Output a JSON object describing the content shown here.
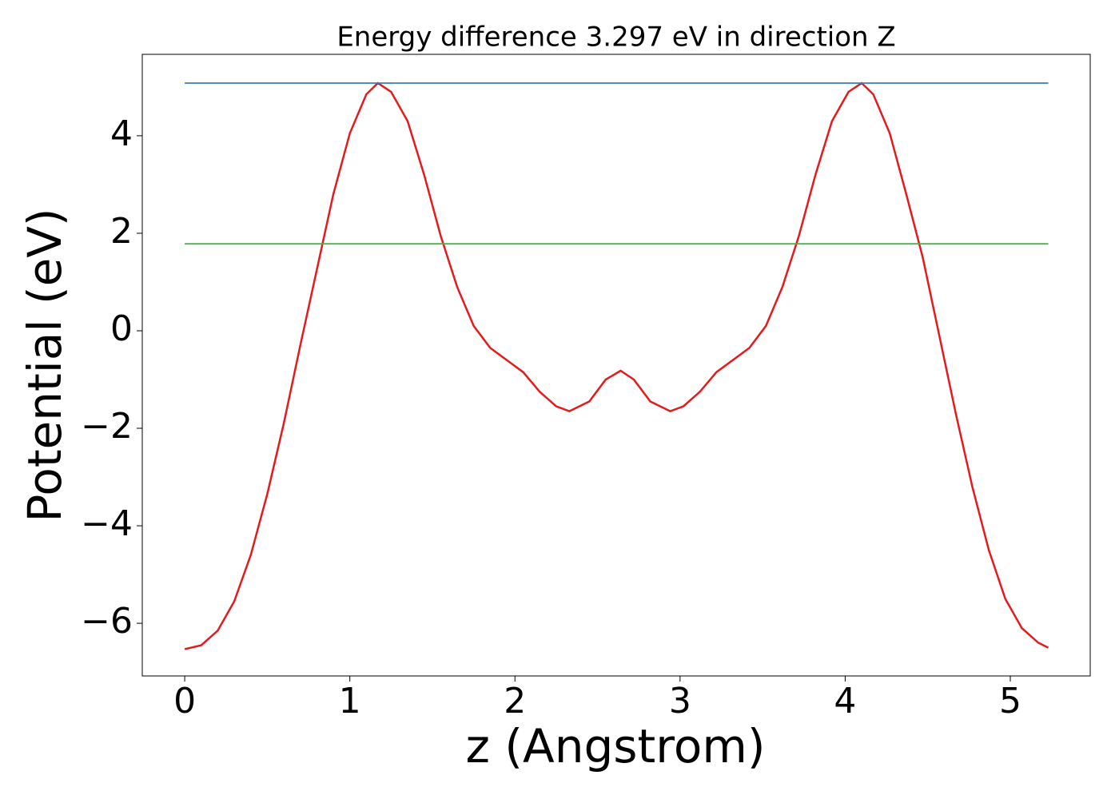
{
  "chart_data": {
    "type": "line",
    "title": "Energy difference 3.297 eV in direction Z",
    "x_label": "z (Angstrom)",
    "y_label": "Potential (eV)",
    "xlim": [
      -0.257,
      5.484
    ],
    "ylim": [
      -7.08,
      5.67
    ],
    "xticks": [
      0,
      1,
      2,
      3,
      4,
      5
    ],
    "yticks": [
      {
        "value": -6,
        "label": "−6"
      },
      {
        "value": -4,
        "label": "−4"
      },
      {
        "value": -2,
        "label": "−2"
      },
      0,
      2,
      4
    ],
    "series": [
      {
        "color": "#e41a1c",
        "x": [
          0,
          0.1,
          0.2,
          0.3,
          0.4,
          0.5,
          0.6,
          0.7,
          0.8,
          0.9,
          1.0,
          1.1,
          1.17,
          1.25,
          1.35,
          1.45,
          1.55,
          1.65,
          1.75,
          1.85,
          1.95,
          2.05,
          2.15,
          2.25,
          2.33,
          2.45,
          2.55,
          2.64,
          2.72,
          2.82,
          2.94,
          3.02,
          3.12,
          3.22,
          3.32,
          3.42,
          3.52,
          3.62,
          3.72,
          3.82,
          3.92,
          4.02,
          4.1,
          4.17,
          4.27,
          4.37,
          4.47,
          4.57,
          4.67,
          4.77,
          4.87,
          4.97,
          5.07,
          5.17,
          5.23
        ],
        "values": [
          -6.53,
          -6.45,
          -6.15,
          -5.55,
          -4.6,
          -3.35,
          -1.9,
          -0.3,
          1.25,
          2.8,
          4.05,
          4.85,
          5.08,
          4.9,
          4.3,
          3.2,
          1.95,
          0.9,
          0.1,
          -0.35,
          -0.6,
          -0.85,
          -1.25,
          -1.55,
          -1.65,
          -1.45,
          -1.0,
          -0.82,
          -1.0,
          -1.45,
          -1.65,
          -1.55,
          -1.25,
          -0.85,
          -0.6,
          -0.35,
          0.1,
          0.9,
          1.95,
          3.2,
          4.3,
          4.9,
          5.08,
          4.85,
          4.05,
          2.8,
          1.5,
          -0.1,
          -1.7,
          -3.2,
          -4.5,
          -5.5,
          -6.1,
          -6.4,
          -6.5
        ]
      },
      {
        "color": "#377eb8",
        "x": [
          0,
          5.23
        ],
        "values": [
          5.08,
          5.08
        ]
      },
      {
        "color": "#4daf4a",
        "x": [
          0,
          5.23
        ],
        "values": [
          1.783,
          1.783
        ]
      }
    ]
  }
}
